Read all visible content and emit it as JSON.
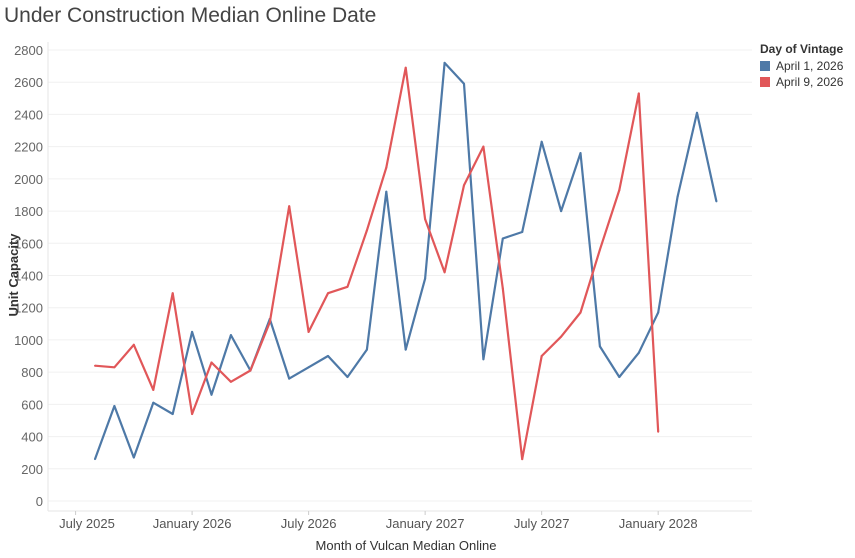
{
  "chart_data": {
    "type": "line",
    "title": "Under Construction Median Online Date",
    "xlabel": "Month of Vulcan Median Online",
    "ylabel": "Unit Capacity",
    "ylim": [
      0,
      2800
    ],
    "yticks": [
      0,
      200,
      400,
      600,
      800,
      1000,
      1200,
      1400,
      1600,
      1800,
      2000,
      2200,
      2400,
      2600,
      2800
    ],
    "x_start": "August 2025",
    "xtick_labels": [
      {
        "label": "July 2025",
        "month_index": -1
      },
      {
        "label": "January 2026",
        "month_index": 5
      },
      {
        "label": "July 2026",
        "month_index": 11
      },
      {
        "label": "January 2027",
        "month_index": 17
      },
      {
        "label": "July 2027",
        "month_index": 23
      },
      {
        "label": "January 2028",
        "month_index": 29
      }
    ],
    "grid": true,
    "legend_title": "Day of Vintage",
    "legend_position": "top-right",
    "series": [
      {
        "name": "April 1, 2026",
        "color": "#4e79a7",
        "values": [
          260,
          590,
          270,
          610,
          540,
          1050,
          660,
          1030,
          810,
          1130,
          760,
          830,
          900,
          770,
          940,
          1920,
          940,
          1380,
          2720,
          2590,
          880,
          1630,
          1670,
          2230,
          1800,
          2160,
          960,
          770,
          920,
          1170,
          1890,
          2410,
          1860
        ]
      },
      {
        "name": "April 9, 2026",
        "color": "#e15759",
        "values": [
          840,
          830,
          970,
          690,
          1290,
          540,
          860,
          740,
          810,
          1110,
          1830,
          1050,
          1290,
          1330,
          1680,
          2070,
          2690,
          1750,
          1420,
          1960,
          2200,
          1320,
          260,
          900,
          1020,
          1170,
          1560,
          1930,
          2530,
          430
        ]
      }
    ]
  }
}
